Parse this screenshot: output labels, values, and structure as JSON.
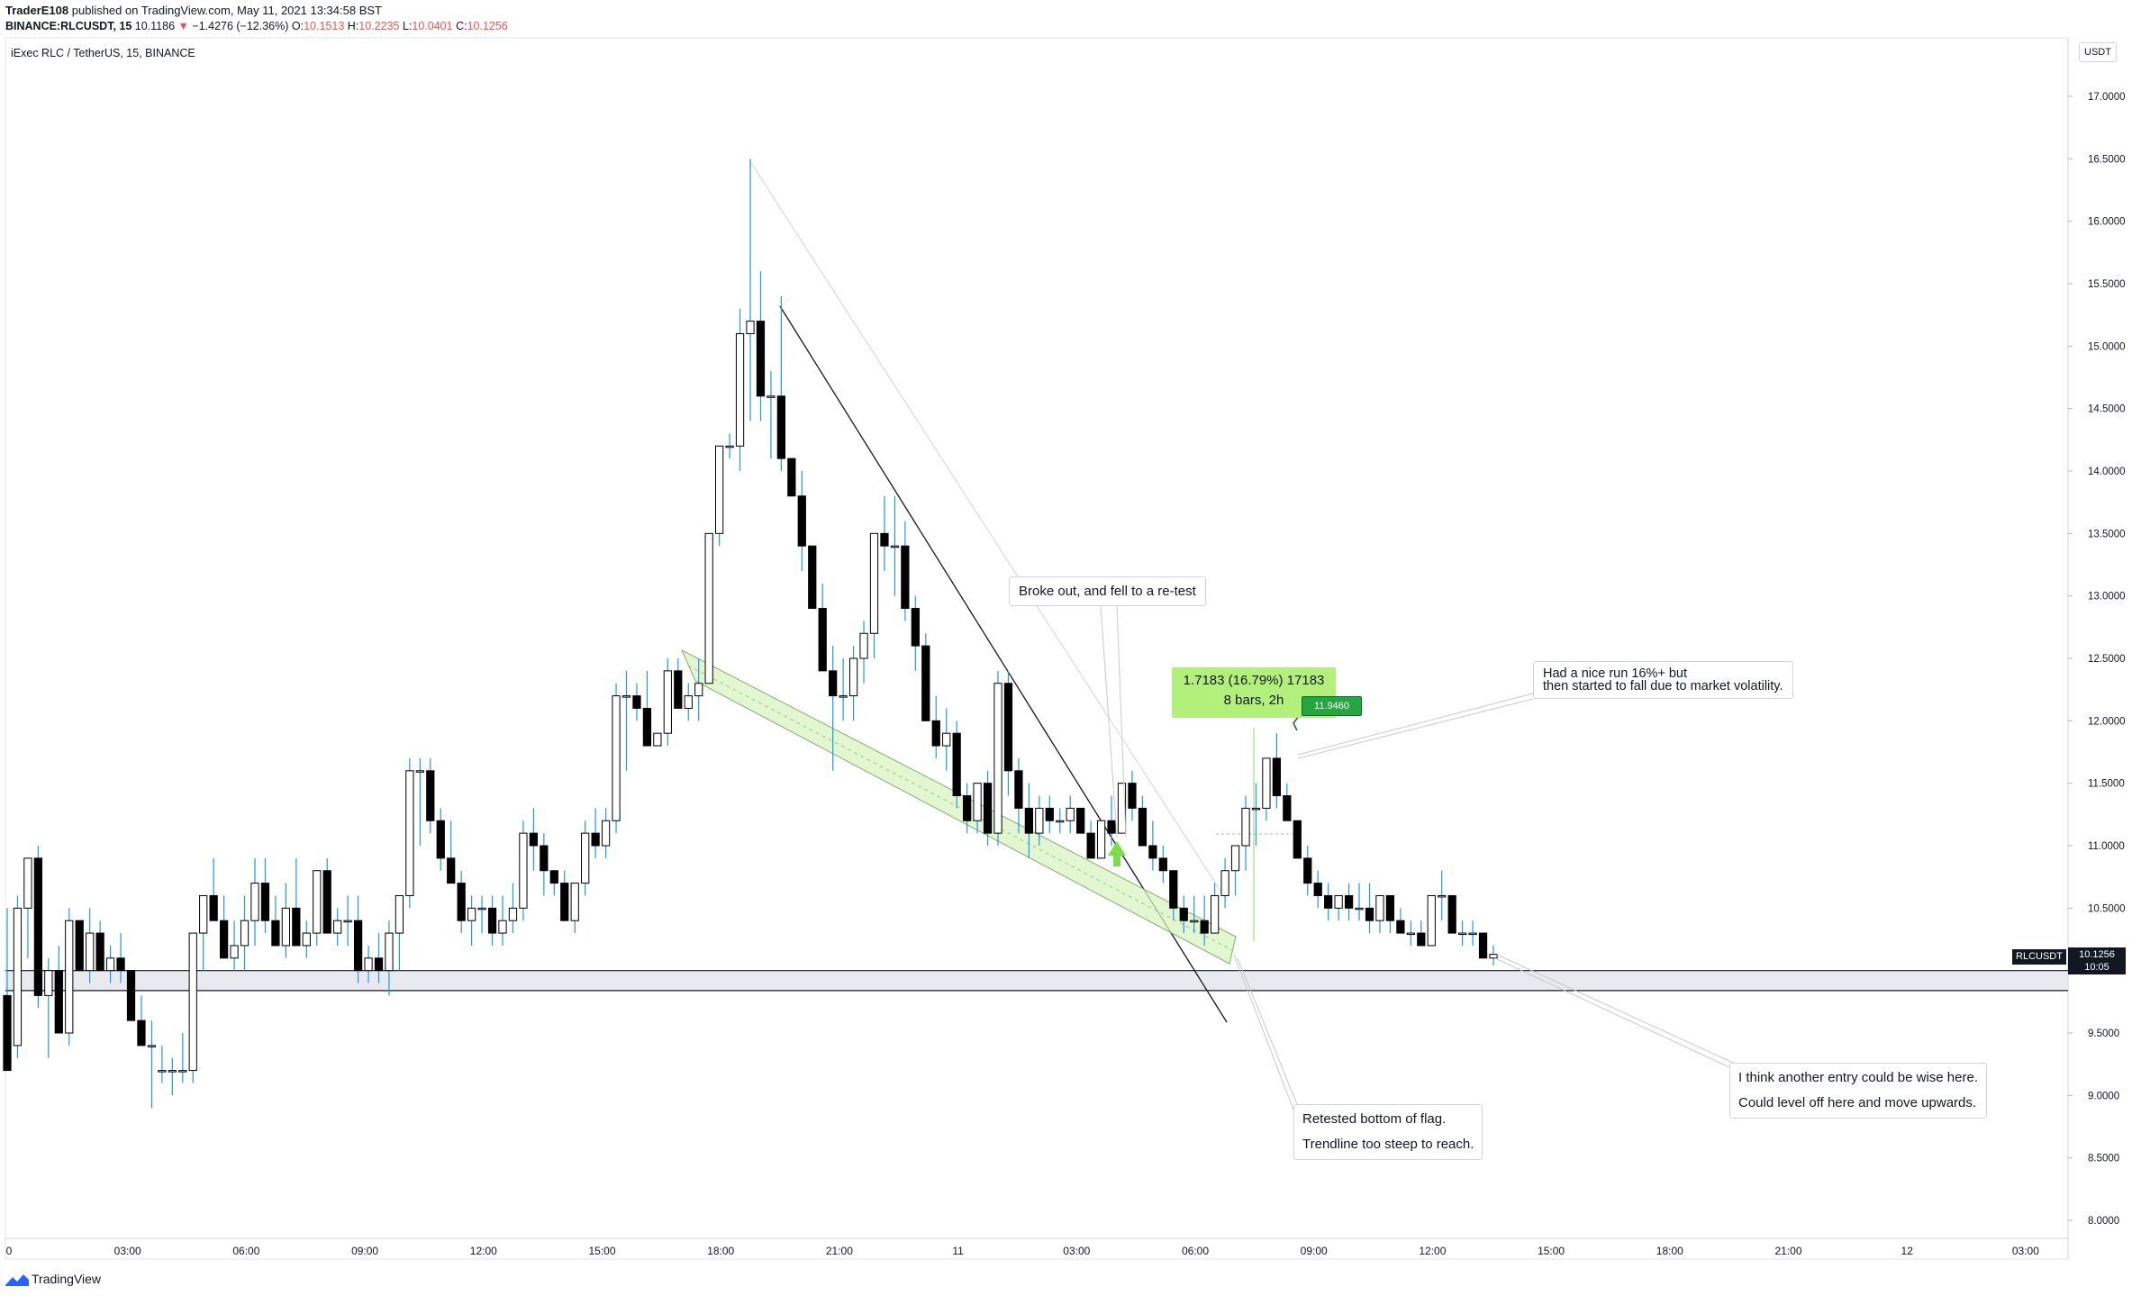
{
  "header": {
    "publisher": "TraderE108",
    "published_text": "published on TradingView.com, May 11, 2021 13:34:58 BST",
    "symbol": "BINANCE:RLCUSDT, 15",
    "last": "10.1186",
    "change_arrow": "▼",
    "change": "−1.4276 (−12.36%)",
    "o_label": "O:",
    "o": "10.1513",
    "h_label": "H:",
    "h": "10.2235",
    "l_label": "L:",
    "l": "10.0401",
    "c_label": "C:",
    "c": "10.1256"
  },
  "chart_title": "iExec RLC / TetherUS, 15, BINANCE",
  "currency_button": "USDT",
  "price_tag": {
    "ticker": "RLCUSDT",
    "price": "10.1256",
    "countdown": "10:05"
  },
  "measure": {
    "line1": "1.7183 (16.79%) 17183",
    "line2": "8 bars, 2h",
    "badge": "11.9460"
  },
  "annotations": {
    "breakout": "Broke out, and fell to a re-test",
    "run_line1": "Had a nice run 16%+ but",
    "run_line2": "then started to fall due to market volatility.",
    "retest_line1": "Retested bottom of flag.",
    "retest_line2": "Trendline too steep to reach.",
    "entry_line1": "I think another entry could be wise here.",
    "entry_line2": "Could level off here and move upwards."
  },
  "footer_logo": "TradingView",
  "colors": {
    "candle_up": "#ffffff",
    "candle_down": "#000000",
    "wick": "#2196f3",
    "accent_green": "#b2f07b",
    "red": "#ef5350"
  },
  "chart_data": {
    "type": "candlestick",
    "title": "iExec RLC / TetherUS, 15, BINANCE",
    "y_ticks": [
      "17.0000",
      "16.5000",
      "16.0000",
      "15.5000",
      "15.0000",
      "14.5000",
      "14.0000",
      "13.5000",
      "13.0000",
      "12.5000",
      "12.0000",
      "11.5000",
      "11.0000",
      "10.5000",
      "10.0000",
      "9.5000",
      "9.0000",
      "8.5000",
      "8.0000"
    ],
    "x_ticks": [
      "0",
      "03:00",
      "06:00",
      "09:00",
      "12:00",
      "15:00",
      "18:00",
      "21:00",
      "11",
      "03:00",
      "06:00",
      "09:00",
      "12:00",
      "15:00",
      "18:00",
      "21:00",
      "12",
      "03:00"
    ],
    "ylim": [
      7.6,
      17.6
    ],
    "support_zone": [
      9.84,
      10.0
    ],
    "candles_ohlc_approx": [
      [
        9.8,
        10.5,
        9.2,
        9.2
      ],
      [
        9.4,
        10.6,
        9.3,
        10.5
      ],
      [
        10.5,
        10.9,
        10.1,
        10.9
      ],
      [
        10.9,
        11.0,
        9.7,
        9.8
      ],
      [
        9.8,
        10.1,
        9.3,
        10.0
      ],
      [
        10.0,
        10.2,
        9.5,
        9.5
      ],
      [
        9.5,
        10.5,
        9.4,
        10.4
      ],
      [
        10.4,
        10.4,
        10.0,
        10.0
      ],
      [
        10.0,
        10.5,
        9.9,
        10.3
      ],
      [
        10.3,
        10.4,
        10.0,
        10.0
      ],
      [
        10.0,
        10.2,
        9.9,
        10.1
      ],
      [
        10.1,
        10.3,
        9.9,
        10.0
      ],
      [
        10.0,
        10.0,
        9.8,
        9.6
      ],
      [
        9.6,
        9.8,
        9.4,
        9.4
      ],
      [
        9.4,
        9.6,
        8.9,
        9.4
      ],
      [
        9.2,
        9.4,
        9.1,
        9.2
      ],
      [
        9.2,
        9.3,
        9.0,
        9.2
      ],
      [
        9.2,
        9.5,
        9.1,
        9.2
      ],
      [
        9.2,
        10.3,
        9.1,
        10.3
      ],
      [
        10.3,
        10.6,
        10.0,
        10.6
      ],
      [
        10.6,
        10.9,
        10.4,
        10.4
      ],
      [
        10.4,
        10.6,
        10.1,
        10.1
      ],
      [
        10.1,
        10.4,
        10.0,
        10.2
      ],
      [
        10.2,
        10.6,
        10.0,
        10.4
      ],
      [
        10.4,
        10.9,
        10.2,
        10.7
      ],
      [
        10.7,
        10.9,
        10.3,
        10.4
      ],
      [
        10.4,
        10.6,
        10.2,
        10.2
      ],
      [
        10.2,
        10.7,
        10.1,
        10.5
      ],
      [
        10.5,
        10.9,
        10.2,
        10.2
      ],
      [
        10.2,
        10.4,
        10.1,
        10.3
      ],
      [
        10.3,
        10.8,
        10.2,
        10.8
      ],
      [
        10.8,
        10.9,
        10.3,
        10.3
      ],
      [
        10.3,
        10.5,
        10.2,
        10.4
      ],
      [
        10.4,
        10.6,
        10.2,
        10.4
      ],
      [
        10.4,
        10.6,
        9.9,
        10.0
      ],
      [
        10.0,
        10.2,
        9.9,
        10.1
      ],
      [
        10.1,
        10.3,
        9.9,
        10.0
      ],
      [
        10.0,
        10.4,
        9.8,
        10.3
      ],
      [
        10.3,
        10.6,
        10.0,
        10.6
      ],
      [
        10.6,
        11.7,
        10.5,
        11.6
      ],
      [
        11.6,
        11.7,
        11.0,
        11.6
      ],
      [
        11.6,
        11.7,
        11.1,
        11.2
      ],
      [
        11.2,
        11.3,
        10.8,
        10.9
      ],
      [
        10.9,
        11.2,
        10.7,
        10.7
      ],
      [
        10.7,
        10.8,
        10.3,
        10.4
      ],
      [
        10.4,
        10.6,
        10.2,
        10.5
      ],
      [
        10.5,
        10.6,
        10.3,
        10.5
      ],
      [
        10.5,
        10.6,
        10.2,
        10.3
      ],
      [
        10.3,
        10.6,
        10.2,
        10.4
      ],
      [
        10.4,
        10.7,
        10.3,
        10.5
      ],
      [
        10.5,
        11.2,
        10.4,
        11.1
      ],
      [
        11.1,
        11.3,
        10.8,
        11.0
      ],
      [
        11.0,
        11.1,
        10.6,
        10.8
      ],
      [
        10.8,
        10.8,
        10.6,
        10.7
      ],
      [
        10.7,
        10.8,
        10.4,
        10.4
      ],
      [
        10.4,
        10.7,
        10.3,
        10.7
      ],
      [
        10.7,
        11.2,
        10.6,
        11.1
      ],
      [
        11.1,
        11.3,
        10.9,
        11.0
      ],
      [
        11.0,
        11.3,
        10.9,
        11.2
      ],
      [
        11.2,
        12.3,
        11.1,
        12.2
      ],
      [
        12.2,
        12.4,
        11.6,
        12.2
      ],
      [
        12.2,
        12.3,
        12.0,
        12.1
      ],
      [
        12.1,
        12.4,
        11.8,
        11.8
      ],
      [
        11.8,
        11.9,
        11.8,
        11.9
      ],
      [
        11.9,
        12.5,
        11.8,
        12.4
      ],
      [
        12.4,
        12.5,
        12.1,
        12.1
      ],
      [
        12.1,
        12.3,
        12.0,
        12.2
      ],
      [
        12.2,
        12.5,
        12.0,
        12.3
      ],
      [
        12.3,
        13.5,
        12.3,
        13.5
      ],
      [
        13.5,
        14.2,
        13.4,
        14.2
      ],
      [
        14.2,
        14.3,
        14.1,
        14.2
      ],
      [
        14.2,
        15.3,
        14.0,
        15.1
      ],
      [
        15.1,
        16.5,
        14.4,
        15.2
      ],
      [
        15.2,
        15.6,
        14.4,
        14.6
      ],
      [
        14.6,
        14.8,
        14.1,
        14.6
      ],
      [
        14.6,
        15.4,
        14.0,
        14.1
      ],
      [
        14.1,
        14.1,
        13.8,
        13.8
      ],
      [
        13.8,
        14.0,
        13.2,
        13.4
      ],
      [
        13.4,
        13.4,
        12.9,
        12.9
      ],
      [
        12.9,
        13.1,
        12.5,
        12.4
      ],
      [
        12.4,
        12.6,
        11.6,
        12.2
      ],
      [
        12.2,
        12.5,
        12.0,
        12.2
      ],
      [
        12.2,
        12.6,
        12.0,
        12.5
      ],
      [
        12.5,
        12.8,
        12.3,
        12.7
      ],
      [
        12.7,
        13.5,
        12.5,
        13.5
      ],
      [
        13.5,
        13.8,
        13.2,
        13.4
      ],
      [
        13.4,
        13.8,
        13.0,
        13.4
      ],
      [
        13.4,
        13.6,
        12.8,
        12.9
      ],
      [
        12.9,
        13.0,
        12.4,
        12.6
      ],
      [
        12.6,
        12.7,
        12.0,
        12.0
      ],
      [
        12.0,
        12.2,
        11.7,
        11.8
      ],
      [
        11.8,
        12.1,
        11.6,
        11.9
      ],
      [
        11.9,
        12.0,
        11.3,
        11.4
      ],
      [
        11.4,
        11.5,
        11.1,
        11.2
      ],
      [
        11.2,
        11.5,
        11.1,
        11.5
      ],
      [
        11.5,
        11.6,
        11.0,
        11.1
      ],
      [
        11.1,
        12.4,
        11.0,
        12.3
      ],
      [
        12.3,
        12.4,
        11.4,
        11.6
      ],
      [
        11.6,
        11.7,
        11.1,
        11.3
      ],
      [
        11.3,
        11.5,
        10.9,
        11.1
      ],
      [
        11.1,
        11.4,
        11.0,
        11.3
      ],
      [
        11.3,
        11.4,
        11.1,
        11.2
      ],
      [
        11.2,
        11.3,
        11.1,
        11.2
      ],
      [
        11.2,
        11.4,
        11.1,
        11.3
      ],
      [
        11.3,
        11.3,
        11.1,
        11.1
      ],
      [
        11.1,
        11.2,
        10.9,
        10.9
      ],
      [
        10.9,
        11.2,
        10.9,
        11.2
      ],
      [
        11.2,
        11.4,
        11.0,
        11.1
      ],
      [
        11.1,
        11.5,
        11.1,
        11.5
      ],
      [
        11.5,
        11.6,
        11.2,
        11.3
      ],
      [
        11.3,
        11.4,
        11.0,
        11.0
      ],
      [
        11.0,
        11.2,
        10.8,
        10.9
      ],
      [
        10.9,
        11.0,
        10.7,
        10.8
      ],
      [
        10.8,
        10.8,
        10.4,
        10.5
      ],
      [
        10.5,
        10.6,
        10.3,
        10.4
      ],
      [
        10.4,
        10.6,
        10.3,
        10.4
      ],
      [
        10.4,
        10.6,
        10.2,
        10.3
      ],
      [
        10.3,
        10.7,
        10.3,
        10.6
      ],
      [
        10.6,
        10.9,
        10.5,
        10.8
      ],
      [
        10.8,
        11.0,
        10.6,
        11.0
      ],
      [
        11.0,
        11.4,
        10.8,
        11.3
      ],
      [
        11.3,
        11.5,
        11.0,
        11.3
      ],
      [
        11.3,
        11.7,
        11.2,
        11.7
      ],
      [
        11.7,
        11.9,
        11.3,
        11.4
      ],
      [
        11.4,
        11.5,
        11.2,
        11.2
      ],
      [
        11.2,
        11.2,
        10.9,
        10.9
      ],
      [
        10.9,
        11.0,
        10.6,
        10.7
      ],
      [
        10.7,
        10.8,
        10.5,
        10.6
      ],
      [
        10.6,
        10.7,
        10.4,
        10.5
      ],
      [
        10.5,
        10.6,
        10.4,
        10.6
      ],
      [
        10.6,
        10.7,
        10.4,
        10.5
      ],
      [
        10.5,
        10.7,
        10.4,
        10.5
      ],
      [
        10.5,
        10.7,
        10.3,
        10.4
      ],
      [
        10.4,
        10.6,
        10.3,
        10.6
      ],
      [
        10.6,
        10.6,
        10.3,
        10.4
      ],
      [
        10.4,
        10.5,
        10.3,
        10.3
      ],
      [
        10.3,
        10.4,
        10.2,
        10.3
      ],
      [
        10.3,
        10.4,
        10.2,
        10.2
      ],
      [
        10.2,
        10.6,
        10.2,
        10.6
      ],
      [
        10.6,
        10.8,
        10.4,
        10.6
      ],
      [
        10.6,
        10.6,
        10.3,
        10.3
      ],
      [
        10.3,
        10.4,
        10.2,
        10.3
      ],
      [
        10.3,
        10.4,
        10.2,
        10.3
      ],
      [
        10.3,
        10.3,
        10.1,
        10.1
      ],
      [
        10.1,
        10.2,
        10.04,
        10.13
      ]
    ]
  }
}
